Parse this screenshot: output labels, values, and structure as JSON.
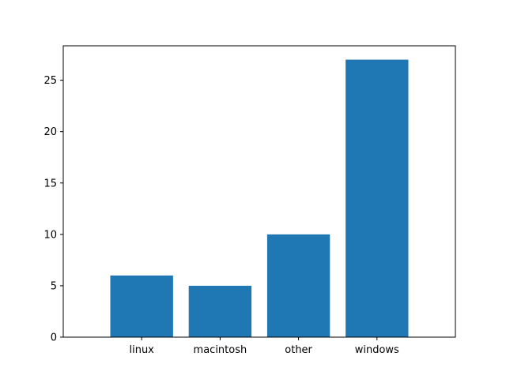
{
  "chart_data": {
    "type": "bar",
    "title": "",
    "xlabel": "",
    "ylabel": "",
    "categories": [
      "linux",
      "macintosh",
      "other",
      "windows"
    ],
    "values": [
      6,
      5,
      10,
      27
    ],
    "ylim": [
      0,
      28.35
    ],
    "yticks": [
      0,
      5,
      10,
      15,
      20,
      25
    ],
    "grid": false,
    "legend": "none",
    "bar_color": "#1f77b4"
  }
}
